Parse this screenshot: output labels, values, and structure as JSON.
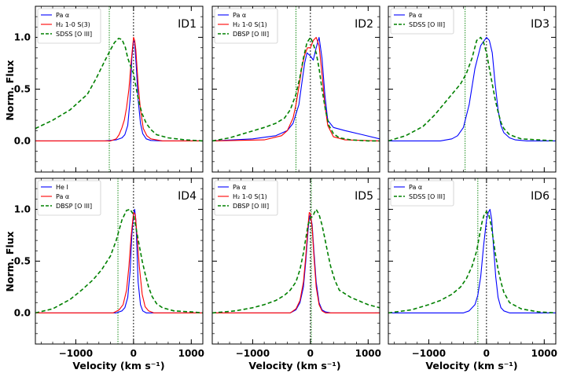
{
  "figure": {
    "ylabel": "Norm. Flux",
    "xlabel": "Velocity (km s⁻¹)"
  },
  "colors": {
    "pa_alpha": "#0000ff",
    "h2": "#ff0000",
    "oiii": "#008000",
    "he1": "#0000ff",
    "vline_zero": "#000000",
    "vline_offset": "#008000"
  },
  "chart_data": [
    {
      "type": "line",
      "id_label": "ID1",
      "xlim": [
        -1700,
        1200
      ],
      "ylim": [
        -0.3,
        1.3
      ],
      "xticks": [
        -1000,
        0,
        1000
      ],
      "yticks": [
        0.0,
        0.5,
        1.0
      ],
      "legend_loc": "upper-left",
      "vlines": [
        {
          "x": 0,
          "style": "zero"
        },
        {
          "x": -420,
          "style": "offset"
        }
      ],
      "series": [
        {
          "name": "Pa α",
          "color_key": "pa_alpha",
          "dash": false,
          "x": [
            -1700,
            -500,
            -300,
            -200,
            -150,
            -100,
            -60,
            -30,
            0,
            20,
            50,
            80,
            120,
            160,
            220,
            300,
            500,
            1200
          ],
          "y": [
            0.0,
            0.0,
            0.01,
            0.03,
            0.06,
            0.15,
            0.4,
            0.8,
            0.97,
            0.95,
            0.7,
            0.4,
            0.17,
            0.07,
            0.02,
            0.005,
            0.0,
            0.0
          ]
        },
        {
          "name": "H₂ 1-0 S(3)",
          "color_key": "h2",
          "dash": false,
          "x": [
            -1700,
            -400,
            -300,
            -250,
            -200,
            -160,
            -120,
            -80,
            -40,
            0,
            20,
            40,
            80,
            120,
            170,
            230,
            300,
            500,
            1200
          ],
          "y": [
            0.0,
            0.0,
            0.02,
            0.06,
            0.13,
            0.2,
            0.32,
            0.5,
            0.77,
            1.0,
            0.97,
            0.88,
            0.55,
            0.3,
            0.12,
            0.05,
            0.02,
            0.0,
            0.0
          ]
        },
        {
          "name": "SDSS [O III]",
          "color_key": "oiii",
          "dash": true,
          "x": [
            -1700,
            -1400,
            -1100,
            -800,
            -650,
            -500,
            -400,
            -330,
            -260,
            -200,
            -140,
            -100,
            -50,
            0,
            50,
            100,
            150,
            220,
            300,
            400,
            600,
            900,
            1200
          ],
          "y": [
            0.12,
            0.2,
            0.3,
            0.45,
            0.6,
            0.77,
            0.88,
            0.95,
            0.99,
            0.98,
            0.9,
            0.8,
            0.72,
            0.65,
            0.5,
            0.36,
            0.26,
            0.17,
            0.11,
            0.06,
            0.03,
            0.01,
            0.0
          ]
        }
      ]
    },
    {
      "type": "line",
      "id_label": "ID2",
      "xlim": [
        -1700,
        1200
      ],
      "ylim": [
        -0.3,
        1.3
      ],
      "xticks": [
        -1000,
        0,
        1000
      ],
      "yticks": [
        0.0,
        0.5,
        1.0
      ],
      "legend_loc": "upper-left",
      "vlines": [
        {
          "x": 0,
          "style": "zero"
        },
        {
          "x": -250,
          "style": "offset"
        }
      ],
      "series": [
        {
          "name": "Pa α",
          "color_key": "pa_alpha",
          "dash": false,
          "x": [
            -1700,
            -1000,
            -600,
            -400,
            -300,
            -200,
            -150,
            -100,
            -60,
            0,
            50,
            100,
            150,
            200,
            250,
            300,
            400,
            600,
            900,
            1200
          ],
          "y": [
            0.0,
            0.02,
            0.05,
            0.1,
            0.17,
            0.35,
            0.55,
            0.75,
            0.85,
            0.82,
            0.78,
            0.9,
            1.0,
            0.8,
            0.45,
            0.2,
            0.13,
            0.1,
            0.06,
            0.02
          ]
        },
        {
          "name": "H₂ 1-0 S(1)",
          "color_key": "h2",
          "dash": false,
          "x": [
            -1700,
            -800,
            -500,
            -400,
            -300,
            -250,
            -200,
            -150,
            -100,
            -50,
            0,
            50,
            100,
            150,
            200,
            250,
            300,
            400,
            600,
            1200
          ],
          "y": [
            0.0,
            0.01,
            0.05,
            0.1,
            0.22,
            0.35,
            0.52,
            0.7,
            0.83,
            0.9,
            0.9,
            0.97,
            1.0,
            0.92,
            0.65,
            0.35,
            0.15,
            0.04,
            0.01,
            0.0
          ]
        },
        {
          "name": "DBSP [O III]",
          "color_key": "oiii",
          "dash": true,
          "x": [
            -1700,
            -1400,
            -1100,
            -800,
            -600,
            -450,
            -350,
            -250,
            -180,
            -120,
            -60,
            0,
            40,
            100,
            150,
            200,
            260,
            320,
            400,
            500,
            700,
            1000,
            1200
          ],
          "y": [
            0.0,
            0.03,
            0.08,
            0.13,
            0.17,
            0.22,
            0.3,
            0.45,
            0.62,
            0.8,
            0.95,
            1.0,
            0.95,
            0.85,
            0.7,
            0.5,
            0.3,
            0.15,
            0.07,
            0.03,
            0.01,
            0.0,
            0.0
          ]
        }
      ]
    },
    {
      "type": "line",
      "id_label": "ID3",
      "xlim": [
        -1700,
        1200
      ],
      "ylim": [
        -0.3,
        1.3
      ],
      "xticks": [
        -1000,
        0,
        1000
      ],
      "yticks": [
        0.0,
        0.5,
        1.0
      ],
      "legend_loc": "upper-left",
      "vlines": [
        {
          "x": 0,
          "style": "zero"
        },
        {
          "x": -370,
          "style": "offset"
        }
      ],
      "series": [
        {
          "name": "Pa α",
          "color_key": "pa_alpha",
          "dash": false,
          "x": [
            -1700,
            -800,
            -600,
            -500,
            -400,
            -300,
            -200,
            -100,
            0,
            50,
            100,
            150,
            200,
            250,
            300,
            400,
            500,
            700,
            1200
          ],
          "y": [
            0.0,
            0.0,
            0.02,
            0.05,
            0.13,
            0.35,
            0.7,
            0.92,
            1.0,
            0.97,
            0.85,
            0.55,
            0.3,
            0.15,
            0.08,
            0.03,
            0.01,
            0.0,
            0.0
          ]
        },
        {
          "name": "SDSS [O III]",
          "color_key": "oiii",
          "dash": true,
          "x": [
            -1700,
            -1400,
            -1100,
            -900,
            -750,
            -600,
            -450,
            -350,
            -250,
            -170,
            -100,
            -50,
            0,
            50,
            100,
            150,
            200,
            250,
            300,
            400,
            600,
            900,
            1200
          ],
          "y": [
            0.0,
            0.05,
            0.14,
            0.25,
            0.35,
            0.45,
            0.55,
            0.65,
            0.8,
            0.97,
            1.0,
            0.95,
            0.85,
            0.7,
            0.55,
            0.4,
            0.28,
            0.18,
            0.12,
            0.06,
            0.02,
            0.01,
            0.0
          ]
        }
      ]
    },
    {
      "type": "line",
      "id_label": "ID4",
      "xlim": [
        -1700,
        1200
      ],
      "ylim": [
        -0.3,
        1.3
      ],
      "xticks": [
        -1000,
        0,
        1000
      ],
      "yticks": [
        0.0,
        0.5,
        1.0
      ],
      "legend_loc": "upper-left",
      "vlines": [
        {
          "x": 0,
          "style": "zero"
        },
        {
          "x": -270,
          "style": "offset"
        }
      ],
      "series": [
        {
          "name": "He I",
          "color_key": "he1",
          "dash": false,
          "x": [
            -1700,
            -300,
            -200,
            -150,
            -100,
            -60,
            -30,
            0,
            20,
            40,
            60,
            80,
            120,
            160,
            220,
            300,
            1200
          ],
          "y": [
            0.0,
            0.0,
            0.02,
            0.05,
            0.15,
            0.4,
            0.75,
            0.95,
            1.0,
            0.9,
            0.6,
            0.3,
            0.08,
            0.02,
            0.0,
            0.0,
            0.0
          ]
        },
        {
          "name": "Pa α",
          "color_key": "h2",
          "dash": false,
          "x": [
            -1700,
            -350,
            -250,
            -180,
            -120,
            -80,
            -40,
            0,
            30,
            60,
            100,
            150,
            200,
            260,
            350,
            1200
          ],
          "y": [
            0.0,
            0.0,
            0.03,
            0.08,
            0.22,
            0.45,
            0.75,
            0.97,
            0.95,
            0.75,
            0.45,
            0.18,
            0.06,
            0.02,
            0.0,
            0.0
          ]
        },
        {
          "name": "DBSP [O III]",
          "color_key": "oiii",
          "dash": true,
          "x": [
            -1700,
            -1400,
            -1100,
            -900,
            -700,
            -550,
            -400,
            -300,
            -200,
            -120,
            -60,
            0,
            50,
            100,
            150,
            200,
            260,
            320,
            400,
            500,
            700,
            1000,
            1200
          ],
          "y": [
            0.0,
            0.04,
            0.13,
            0.22,
            0.32,
            0.42,
            0.55,
            0.7,
            0.9,
            0.99,
            1.0,
            0.95,
            0.8,
            0.65,
            0.5,
            0.38,
            0.25,
            0.16,
            0.09,
            0.05,
            0.02,
            0.01,
            0.0
          ]
        }
      ]
    },
    {
      "type": "line",
      "id_label": "ID5",
      "xlim": [
        -1700,
        1200
      ],
      "ylim": [
        -0.3,
        1.3
      ],
      "xticks": [
        -1000,
        0,
        1000
      ],
      "yticks": [
        0.0,
        0.5,
        1.0
      ],
      "legend_loc": "upper-left",
      "vlines": [
        {
          "x": 0,
          "style": "zero"
        },
        {
          "x": 15,
          "style": "offset"
        }
      ],
      "series": [
        {
          "name": "Pa α",
          "color_key": "pa_alpha",
          "dash": false,
          "x": [
            -1700,
            -350,
            -250,
            -180,
            -120,
            -80,
            -40,
            -20,
            0,
            30,
            60,
            100,
            150,
            200,
            260,
            350,
            1200
          ],
          "y": [
            0.0,
            0.0,
            0.03,
            0.1,
            0.25,
            0.5,
            0.8,
            0.92,
            0.95,
            0.85,
            0.6,
            0.3,
            0.1,
            0.03,
            0.01,
            0.0,
            0.0
          ]
        },
        {
          "name": "H₂ 1-0 S(1)",
          "color_key": "h2",
          "dash": false,
          "x": [
            -1700,
            -350,
            -250,
            -180,
            -120,
            -80,
            -40,
            -20,
            0,
            30,
            60,
            100,
            150,
            200,
            260,
            350,
            1200
          ],
          "y": [
            0.0,
            0.0,
            0.04,
            0.12,
            0.3,
            0.55,
            0.85,
            0.97,
            0.96,
            0.82,
            0.55,
            0.25,
            0.08,
            0.02,
            0.0,
            0.0,
            0.0
          ]
        },
        {
          "name": "DBSP [O III]",
          "color_key": "oiii",
          "dash": true,
          "x": [
            -1700,
            -1300,
            -1000,
            -800,
            -600,
            -450,
            -350,
            -250,
            -180,
            -120,
            -80,
            -40,
            0,
            40,
            70,
            100,
            150,
            200,
            250,
            300,
            350,
            420,
            500,
            700,
            1000,
            1200
          ],
          "y": [
            0.0,
            0.02,
            0.05,
            0.08,
            0.12,
            0.17,
            0.22,
            0.3,
            0.42,
            0.58,
            0.72,
            0.85,
            0.92,
            0.93,
            0.97,
            1.0,
            0.95,
            0.85,
            0.72,
            0.58,
            0.45,
            0.32,
            0.22,
            0.15,
            0.08,
            0.05
          ]
        }
      ]
    },
    {
      "type": "line",
      "id_label": "ID6",
      "xlim": [
        -1700,
        1200
      ],
      "ylim": [
        -0.3,
        1.3
      ],
      "xticks": [
        -1000,
        0,
        1000
      ],
      "yticks": [
        0.0,
        0.5,
        1.0
      ],
      "legend_loc": "upper-left",
      "vlines": [
        {
          "x": 0,
          "style": "zero"
        },
        {
          "x": -150,
          "style": "offset"
        }
      ],
      "series": [
        {
          "name": "Pa α",
          "color_key": "pa_alpha",
          "dash": false,
          "x": [
            -1700,
            -400,
            -300,
            -200,
            -150,
            -100,
            -50,
            0,
            30,
            60,
            90,
            120,
            160,
            200,
            250,
            300,
            400,
            1200
          ],
          "y": [
            0.0,
            0.0,
            0.02,
            0.08,
            0.17,
            0.35,
            0.65,
            0.9,
            0.97,
            1.0,
            0.9,
            0.65,
            0.35,
            0.15,
            0.05,
            0.02,
            0.0,
            0.0
          ]
        },
        {
          "name": "SDSS [O III]",
          "color_key": "oiii",
          "dash": true,
          "x": [
            -1700,
            -1300,
            -1000,
            -800,
            -600,
            -450,
            -350,
            -250,
            -170,
            -120,
            -80,
            -40,
            0,
            40,
            80,
            120,
            160,
            200,
            250,
            300,
            400,
            600,
            900,
            1200
          ],
          "y": [
            0.0,
            0.03,
            0.08,
            0.12,
            0.18,
            0.25,
            0.33,
            0.45,
            0.6,
            0.75,
            0.87,
            0.95,
            0.98,
            0.95,
            0.85,
            0.7,
            0.55,
            0.42,
            0.3,
            0.2,
            0.1,
            0.04,
            0.01,
            0.0
          ]
        }
      ]
    }
  ]
}
